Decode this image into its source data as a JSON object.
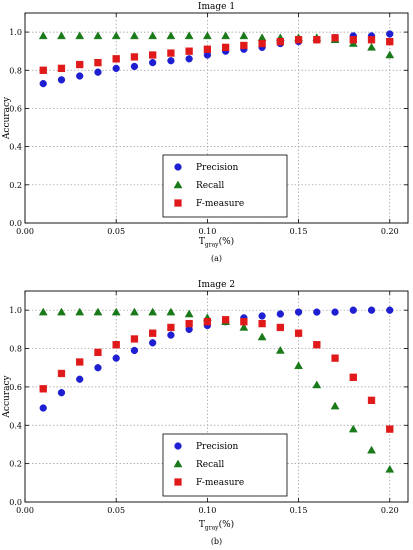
{
  "chart_data": [
    {
      "type": "scatter",
      "title": "Image 1",
      "caption": "(a)",
      "xlabel_main": "T",
      "xlabel_sub": "gray",
      "xlabel_unit": "(%)",
      "ylabel": "Accuracy",
      "xlim": [
        0.0,
        0.21
      ],
      "ylim": [
        0.0,
        1.1
      ],
      "xticks": [
        "0.00",
        "0.05",
        "0.10",
        "0.15",
        "0.20"
      ],
      "yticks": [
        "0.0",
        "0.2",
        "0.4",
        "0.6",
        "0.8",
        "1.0"
      ],
      "grid": true,
      "legend_position": "bottom-center",
      "x": [
        0.01,
        0.02,
        0.03,
        0.04,
        0.05,
        0.06,
        0.07,
        0.08,
        0.09,
        0.1,
        0.11,
        0.12,
        0.13,
        0.14,
        0.15,
        0.16,
        0.17,
        0.18,
        0.19,
        0.2
      ],
      "series": [
        {
          "name": "Precision",
          "marker": "circle",
          "color": "#1f1fd2",
          "values": [
            0.73,
            0.75,
            0.77,
            0.79,
            0.81,
            0.82,
            0.84,
            0.85,
            0.86,
            0.88,
            0.9,
            0.91,
            0.92,
            0.94,
            0.95,
            0.96,
            0.97,
            0.98,
            0.98,
            0.99
          ]
        },
        {
          "name": "Recall",
          "marker": "triangle",
          "color": "#1a7a1a",
          "values": [
            0.98,
            0.98,
            0.98,
            0.98,
            0.98,
            0.98,
            0.98,
            0.98,
            0.98,
            0.98,
            0.98,
            0.98,
            0.97,
            0.97,
            0.97,
            0.97,
            0.96,
            0.94,
            0.92,
            0.88
          ]
        },
        {
          "name": "F-measure",
          "marker": "square",
          "color": "#e01a1a",
          "values": [
            0.8,
            0.81,
            0.83,
            0.84,
            0.86,
            0.87,
            0.88,
            0.89,
            0.9,
            0.91,
            0.92,
            0.93,
            0.94,
            0.95,
            0.96,
            0.96,
            0.97,
            0.96,
            0.96,
            0.95
          ]
        }
      ]
    },
    {
      "type": "scatter",
      "title": "Image 2",
      "caption": "(b)",
      "xlabel_main": "T",
      "xlabel_sub": "gray",
      "xlabel_unit": "(%)",
      "ylabel": "Accuracy",
      "xlim": [
        0.0,
        0.21
      ],
      "ylim": [
        0.0,
        1.1
      ],
      "xticks": [
        "0.00",
        "0.05",
        "0.10",
        "0.15",
        "0.20"
      ],
      "yticks": [
        "0.0",
        "0.2",
        "0.4",
        "0.6",
        "0.8",
        "1.0"
      ],
      "grid": true,
      "legend_position": "bottom-center",
      "x": [
        0.01,
        0.02,
        0.03,
        0.04,
        0.05,
        0.06,
        0.07,
        0.08,
        0.09,
        0.1,
        0.11,
        0.12,
        0.13,
        0.14,
        0.15,
        0.16,
        0.17,
        0.18,
        0.19,
        0.2
      ],
      "series": [
        {
          "name": "Precision",
          "marker": "circle",
          "color": "#1f1fd2",
          "values": [
            0.49,
            0.57,
            0.64,
            0.7,
            0.75,
            0.79,
            0.83,
            0.87,
            0.9,
            0.92,
            0.94,
            0.96,
            0.97,
            0.98,
            0.99,
            0.99,
            0.99,
            1.0,
            1.0,
            1.0
          ]
        },
        {
          "name": "Recall",
          "marker": "triangle",
          "color": "#1a7a1a",
          "values": [
            0.99,
            0.99,
            0.99,
            0.99,
            0.99,
            0.99,
            0.99,
            0.99,
            0.98,
            0.96,
            0.94,
            0.91,
            0.86,
            0.79,
            0.71,
            0.61,
            0.5,
            0.38,
            0.27,
            0.17
          ]
        },
        {
          "name": "F-measure",
          "marker": "square",
          "color": "#e01a1a",
          "values": [
            0.59,
            0.67,
            0.73,
            0.78,
            0.82,
            0.85,
            0.88,
            0.91,
            0.93,
            0.94,
            0.95,
            0.94,
            0.93,
            0.91,
            0.88,
            0.82,
            0.75,
            0.65,
            0.53,
            0.38
          ]
        }
      ]
    }
  ]
}
